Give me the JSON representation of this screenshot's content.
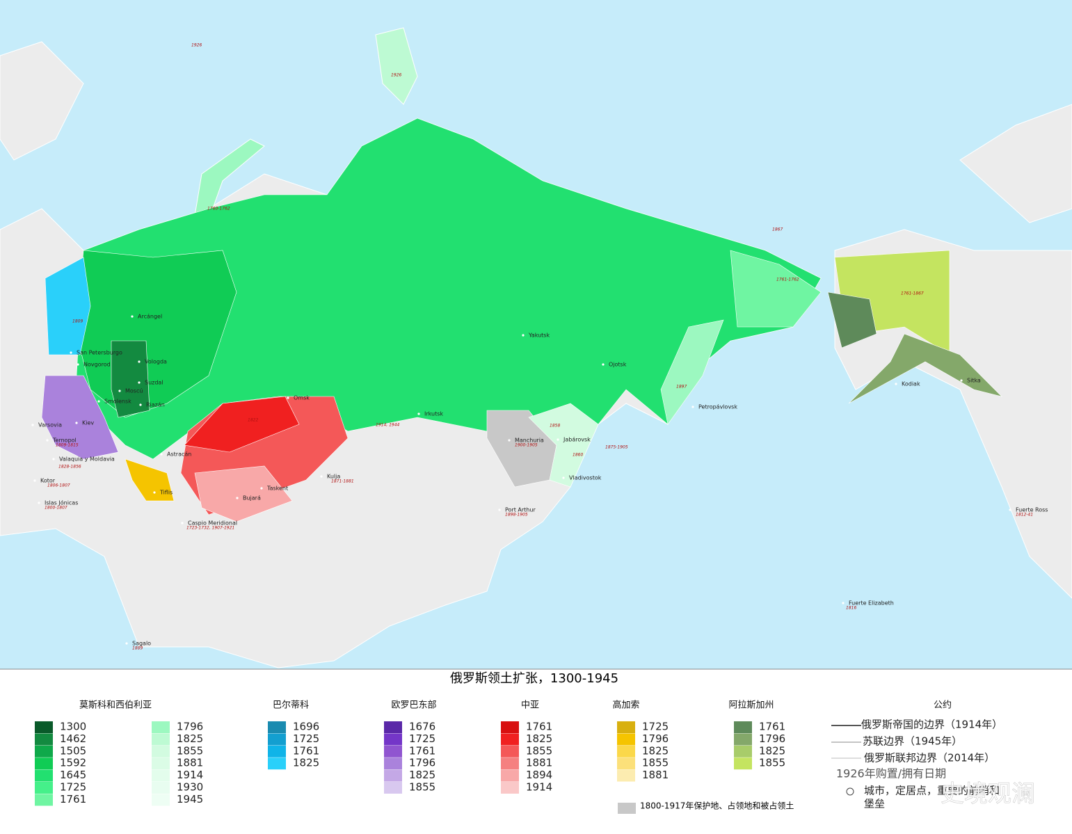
{
  "title": "俄罗斯领土扩张，1300-1945",
  "legend": [
    {
      "title": "莫斯科和西伯利亚",
      "items": [
        {
          "year": 1300,
          "color": "#0a5a2a"
        },
        {
          "year": 1462,
          "color": "#138a40"
        },
        {
          "year": 1505,
          "color": "#0fa94a"
        },
        {
          "year": 1592,
          "color": "#10cc55"
        },
        {
          "year": 1645,
          "color": "#22e070"
        },
        {
          "year": 1725,
          "color": "#45f08a"
        },
        {
          "year": 1761,
          "color": "#6ff5a2"
        },
        {
          "year": 1796,
          "color": "#9cf8c0"
        },
        {
          "year": 1825,
          "color": "#bdfad3"
        },
        {
          "year": 1855,
          "color": "#d2fbe0"
        },
        {
          "year": 1881,
          "color": "#dbfce6"
        },
        {
          "year": 1914,
          "color": "#e3fdec"
        },
        {
          "year": 1930,
          "color": "#e8fdf0"
        },
        {
          "year": 1945,
          "color": "#eefef4"
        }
      ]
    },
    {
      "title": "巴尔蒂科",
      "items": [
        {
          "year": 1696,
          "color": "#1a8bb0"
        },
        {
          "year": 1725,
          "color": "#139fd0"
        },
        {
          "year": 1761,
          "color": "#10b4e8"
        },
        {
          "year": 1825,
          "color": "#2ad0fa"
        }
      ]
    },
    {
      "title": "欧罗巴东部",
      "items": [
        {
          "year": 1676,
          "color": "#5a28a8"
        },
        {
          "year": 1725,
          "color": "#7436c8"
        },
        {
          "year": 1761,
          "color": "#9055d0"
        },
        {
          "year": 1796,
          "color": "#aa82dc"
        },
        {
          "year": 1825,
          "color": "#c4a8e6"
        },
        {
          "year": 1855,
          "color": "#d8c8ef"
        }
      ]
    },
    {
      "title": "中亚",
      "items": [
        {
          "year": 1761,
          "color": "#d81010"
        },
        {
          "year": 1825,
          "color": "#f02020"
        },
        {
          "year": 1855,
          "color": "#f45858"
        },
        {
          "year": 1881,
          "color": "#f58080"
        },
        {
          "year": 1894,
          "color": "#f8a8a8"
        },
        {
          "year": 1914,
          "color": "#fac8c8"
        }
      ]
    },
    {
      "title": "高加索",
      "items": [
        {
          "year": 1725,
          "color": "#d8b010"
        },
        {
          "year": 1796,
          "color": "#f5c400"
        },
        {
          "year": 1825,
          "color": "#fbd84a"
        },
        {
          "year": 1855,
          "color": "#fce07a"
        },
        {
          "year": 1881,
          "color": "#fcecb0"
        }
      ]
    },
    {
      "title": "阿拉斯加州",
      "items": [
        {
          "year": 1761,
          "color": "#5e8a5a"
        },
        {
          "year": 1796,
          "color": "#84a86a"
        },
        {
          "year": 1825,
          "color": "#a8cc6a"
        },
        {
          "year": 1855,
          "color": "#c4e460"
        }
      ]
    }
  ],
  "conventions": {
    "title": "公约",
    "borders": [
      "俄罗斯帝国的边界（1914年）",
      "苏联边界（1945年）",
      "俄罗斯联邦边界（2014年）"
    ],
    "date_note": "1926年购置/拥有日期",
    "city_note": [
      "城市，定居点，重要的前哨和",
      "堡垒"
    ],
    "protectorate": "1800-1917年保护地、占领地和被占领土",
    "protectorate_color": "#c8c8c8"
  },
  "watermark": "史境观澜",
  "map_labels": [
    "Arcángel",
    "San Petersburgo",
    "Novgorod",
    "Vologda",
    "Suzdal",
    "Moscú",
    "Riazán",
    "Smolensk",
    "Kiev",
    "Varsovia",
    "Ternopol",
    "1809-1815",
    "Valaquia y Moldavia",
    "1828-1856",
    "Kotor",
    "1806-1807",
    "Islas Jónicas",
    "1800-1807",
    "Astracán",
    "Tiflis",
    "Caspio Meridional",
    "1723-1732, 1907-1921",
    "Omsk",
    "Irkutsk",
    "Yakutsk",
    "Ojotsk",
    "Petropávlovsk",
    "Jabárovsk",
    "Vladivostok",
    "Manchuria",
    "1900-1905",
    "Port Arthur",
    "1898-1905",
    "Kulja",
    "1871-1881",
    "Taskent",
    "Bujará",
    "Kodiak",
    "Sitka",
    "Fuerte Ross",
    "1812-41",
    "Fuerte Elizabeth",
    "1816",
    "Sagalo",
    "1889",
    "1926",
    "1926",
    "1760-1762",
    "1867",
    "1761-1762",
    "1761-1867",
    "1897",
    "1858",
    "1860",
    "1875-1905",
    "1822",
    "1809",
    "1914, 1944"
  ]
}
